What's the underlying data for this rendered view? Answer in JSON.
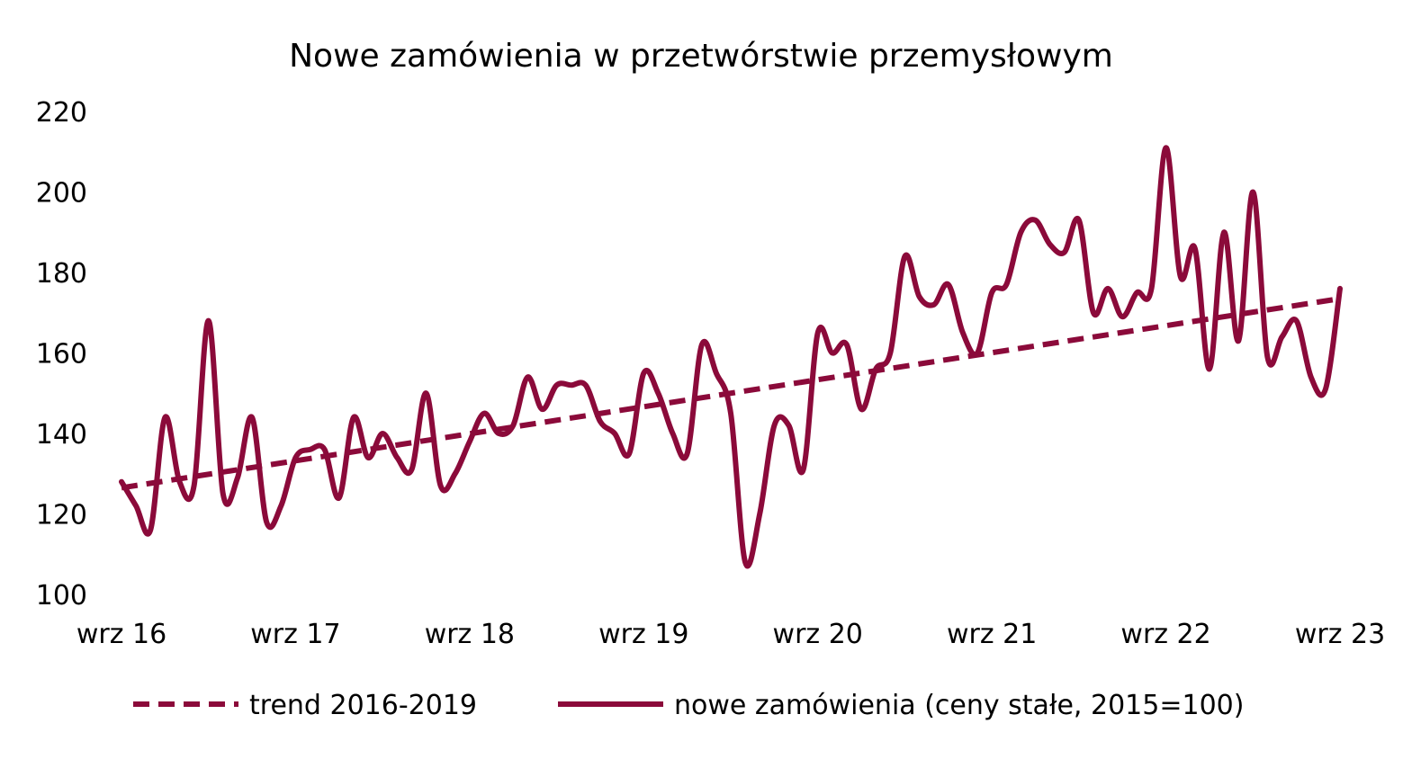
{
  "chart_data": {
    "type": "line",
    "title": "Nowe zamówienia w przetwórstwie przemysłowym",
    "xlabel": "",
    "ylabel": "",
    "ylim": [
      100,
      220
    ],
    "yticks": [
      100,
      120,
      140,
      160,
      180,
      200,
      220
    ],
    "x_tick_labels": [
      "wrz 16",
      "wrz 17",
      "wrz 18",
      "wrz 19",
      "wrz 20",
      "wrz 21",
      "wrz 22",
      "wrz 23"
    ],
    "x_start": "2016-09",
    "x_end": "2023-09",
    "grid": false,
    "legend_position": "bottom",
    "colors": {
      "series": "#8b0a3a"
    },
    "series": [
      {
        "name": "trend 2016-2019",
        "style": "dashed",
        "x": [
          "2016-09",
          "2023-09"
        ],
        "values": [
          126.5,
          173.5
        ]
      },
      {
        "name": "nowe zamówienia (ceny stałe, 2015=100)",
        "style": "solid",
        "x": [
          "2016-09",
          "2016-10",
          "2016-11",
          "2016-12",
          "2017-01",
          "2017-02",
          "2017-03",
          "2017-04",
          "2017-05",
          "2017-06",
          "2017-07",
          "2017-08",
          "2017-09",
          "2017-10",
          "2017-11",
          "2017-12",
          "2018-01",
          "2018-02",
          "2018-03",
          "2018-04",
          "2018-05",
          "2018-06",
          "2018-07",
          "2018-08",
          "2018-09",
          "2018-10",
          "2018-11",
          "2018-12",
          "2019-01",
          "2019-02",
          "2019-03",
          "2019-04",
          "2019-05",
          "2019-06",
          "2019-07",
          "2019-08",
          "2019-09",
          "2019-10",
          "2019-11",
          "2019-12",
          "2020-01",
          "2020-02",
          "2020-03",
          "2020-04",
          "2020-05",
          "2020-06",
          "2020-07",
          "2020-08",
          "2020-09",
          "2020-10",
          "2020-11",
          "2020-12",
          "2021-01",
          "2021-02",
          "2021-03",
          "2021-04",
          "2021-05",
          "2021-06",
          "2021-07",
          "2021-08",
          "2021-09",
          "2021-10",
          "2021-11",
          "2021-12",
          "2022-01",
          "2022-02",
          "2022-03",
          "2022-04",
          "2022-05",
          "2022-06",
          "2022-07",
          "2022-08",
          "2022-09",
          "2022-10",
          "2022-11",
          "2022-12",
          "2023-01",
          "2023-02",
          "2023-03",
          "2023-04",
          "2023-05",
          "2023-06",
          "2023-07",
          "2023-08",
          "2023-09"
        ],
        "values": [
          128,
          122,
          116,
          144,
          128,
          127,
          168,
          125,
          129,
          144,
          118,
          122,
          134,
          136,
          136,
          124,
          144,
          134,
          140,
          134,
          131,
          150,
          127,
          130,
          138,
          145,
          140,
          142,
          154,
          146,
          152,
          152,
          152,
          143,
          140,
          135,
          155,
          150,
          140,
          135,
          162,
          155,
          145,
          108,
          120,
          142,
          142,
          131,
          165,
          160,
          162,
          146,
          156,
          160,
          184,
          174,
          172,
          177,
          165,
          160,
          175,
          177,
          190,
          193,
          187,
          185,
          193,
          170,
          176,
          169,
          175,
          176,
          211,
          179,
          186,
          156,
          190,
          163,
          200,
          159,
          164,
          168,
          154,
          151,
          176
        ]
      }
    ]
  }
}
